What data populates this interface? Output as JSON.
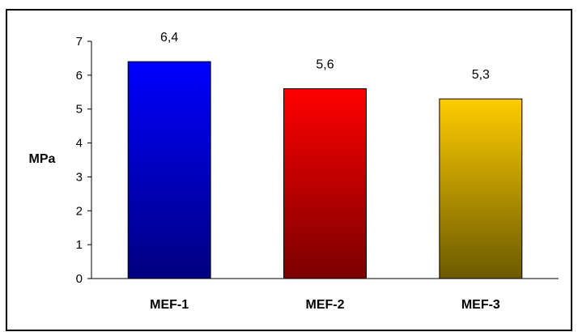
{
  "chart_data": {
    "type": "bar",
    "categories": [
      "MEF-1",
      "MEF-2",
      "MEF-3"
    ],
    "values": [
      6.4,
      5.6,
      5.3
    ],
    "value_labels": [
      "6,4",
      "5,6",
      "5,3"
    ],
    "ylabel": "MPa",
    "ylim": [
      0,
      7
    ],
    "yticks": [
      "0",
      "1",
      "2",
      "3",
      "4",
      "5",
      "6",
      "7"
    ],
    "grid": false,
    "legend": "none",
    "colors": [
      {
        "top": "#0000ff",
        "bottom": "#000080"
      },
      {
        "top": "#ff0000",
        "bottom": "#7a0000"
      },
      {
        "top": "#ffcc00",
        "bottom": "#6b5a00"
      }
    ]
  }
}
